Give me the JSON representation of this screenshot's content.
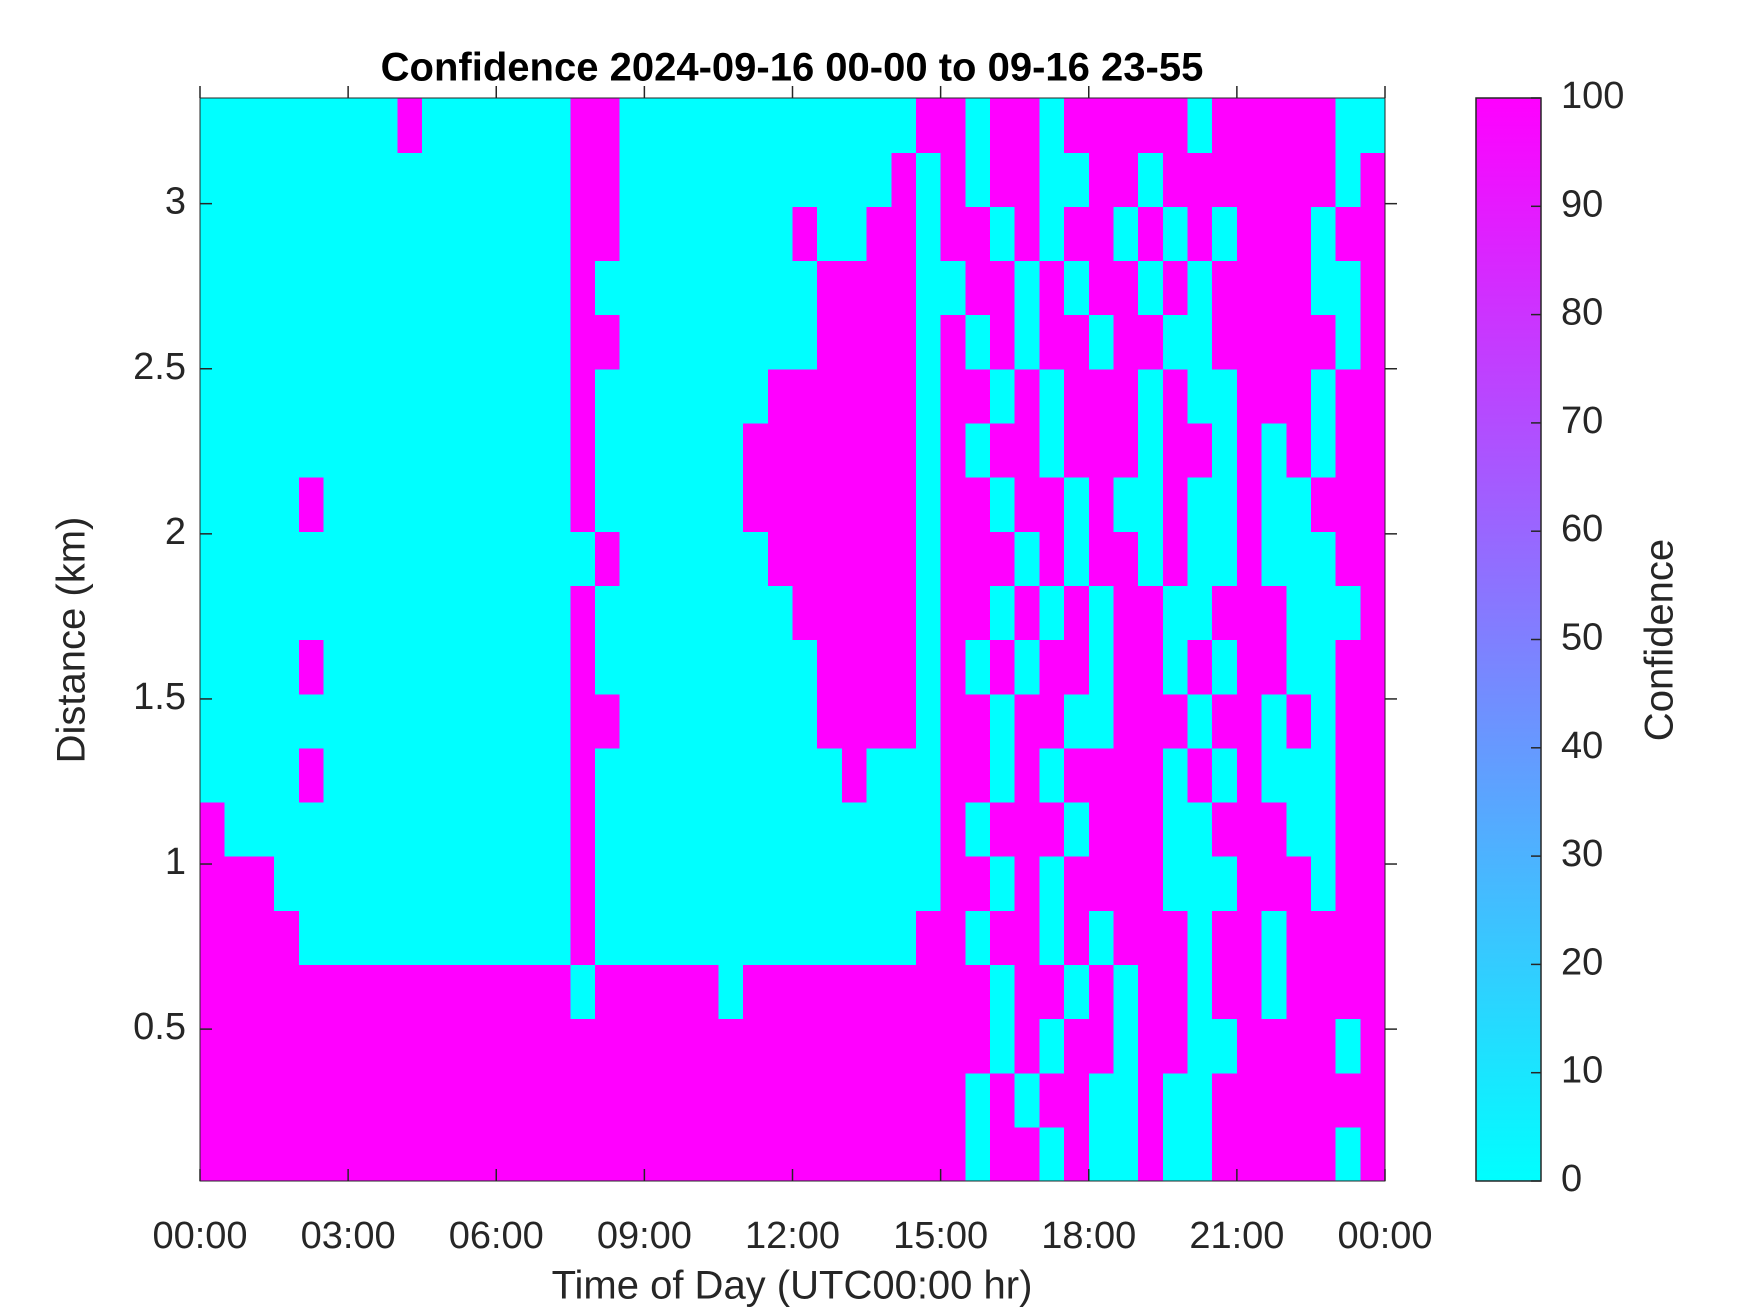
{
  "chart_data": {
    "type": "heatmap",
    "title": "Confidence 2024-09-16 00-00 to 09-16 23-55",
    "xlabel": "Time of Day (UTC00:00 hr)",
    "ylabel": "Distance (km)",
    "colorbar_label": "Confidence",
    "colormap": [
      "#00ffff",
      "#ff00ff"
    ],
    "clim": [
      0,
      100
    ],
    "cticks": [
      0,
      10,
      20,
      30,
      40,
      50,
      60,
      70,
      80,
      90,
      100
    ],
    "xlim": [
      0,
      24
    ],
    "xticks": [
      {
        "value": 0,
        "label": "00:00"
      },
      {
        "value": 3,
        "label": "03:00"
      },
      {
        "value": 6,
        "label": "06:00"
      },
      {
        "value": 9,
        "label": "09:00"
      },
      {
        "value": 12,
        "label": "12:00"
      },
      {
        "value": 15,
        "label": "15:00"
      },
      {
        "value": 18,
        "label": "18:00"
      },
      {
        "value": 21,
        "label": "21:00"
      },
      {
        "value": 24,
        "label": "00:00"
      }
    ],
    "ylim": [
      0.04,
      3.32
    ],
    "yticks": [
      0.5,
      1,
      1.5,
      2,
      2.5,
      3
    ],
    "x": [
      0,
      0.5,
      1,
      1.5,
      2,
      2.5,
      3,
      3.5,
      4,
      4.5,
      5,
      5.5,
      6,
      6.5,
      7,
      7.5,
      8,
      8.5,
      9,
      9.5,
      10,
      10.5,
      11,
      11.5,
      12,
      12.5,
      13,
      13.5,
      14,
      14.5,
      15,
      15.5,
      16,
      16.5,
      17,
      17.5,
      18,
      18.5,
      19,
      19.5,
      20,
      20.5,
      21,
      21.5,
      22,
      22.5,
      23,
      23.5
    ],
    "y": [
      0.04,
      0.204,
      0.368,
      0.532,
      0.696,
      0.86,
      1.024,
      1.188,
      1.352,
      1.516,
      1.68,
      1.844,
      2.008,
      2.172,
      2.336,
      2.5,
      2.664,
      2.828,
      2.992,
      3.156
    ],
    "z": [
      [
        100,
        100,
        100,
        100,
        100,
        100,
        100,
        100,
        100,
        100,
        100,
        100,
        100,
        100,
        100,
        100,
        100,
        100,
        100,
        100,
        100,
        100,
        100,
        100,
        100,
        100,
        100,
        100,
        100,
        100,
        100,
        0,
        100,
        100,
        0,
        100,
        0,
        0,
        100,
        0,
        0,
        100,
        100,
        100,
        100,
        100,
        0,
        100
      ],
      [
        100,
        100,
        100,
        100,
        100,
        100,
        100,
        100,
        100,
        100,
        100,
        100,
        100,
        100,
        100,
        100,
        100,
        100,
        100,
        100,
        100,
        100,
        100,
        100,
        100,
        100,
        100,
        100,
        100,
        100,
        100,
        0,
        100,
        0,
        100,
        100,
        0,
        0,
        100,
        0,
        0,
        100,
        100,
        100,
        100,
        100,
        100,
        100
      ],
      [
        100,
        100,
        100,
        100,
        100,
        100,
        100,
        100,
        100,
        100,
        100,
        100,
        100,
        100,
        100,
        100,
        100,
        100,
        100,
        100,
        100,
        100,
        100,
        100,
        100,
        100,
        100,
        100,
        100,
        100,
        100,
        100,
        0,
        100,
        0,
        100,
        100,
        0,
        100,
        100,
        0,
        0,
        100,
        100,
        100,
        100,
        0,
        100
      ],
      [
        100,
        100,
        100,
        100,
        100,
        100,
        100,
        100,
        100,
        100,
        100,
        100,
        100,
        100,
        100,
        0,
        100,
        100,
        100,
        100,
        100,
        0,
        100,
        100,
        100,
        100,
        100,
        100,
        100,
        100,
        100,
        100,
        0,
        100,
        100,
        0,
        100,
        0,
        100,
        100,
        0,
        100,
        100,
        0,
        100,
        100,
        100,
        100
      ],
      [
        100,
        100,
        100,
        100,
        0,
        0,
        0,
        0,
        0,
        0,
        0,
        0,
        0,
        0,
        0,
        100,
        0,
        0,
        0,
        0,
        0,
        0,
        0,
        0,
        0,
        0,
        0,
        0,
        0,
        100,
        100,
        0,
        100,
        100,
        0,
        100,
        0,
        100,
        100,
        100,
        0,
        100,
        100,
        0,
        100,
        100,
        100,
        100
      ],
      [
        100,
        100,
        100,
        0,
        0,
        0,
        0,
        0,
        0,
        0,
        0,
        0,
        0,
        0,
        0,
        100,
        0,
        0,
        0,
        0,
        0,
        0,
        0,
        0,
        0,
        0,
        0,
        0,
        0,
        0,
        100,
        100,
        0,
        100,
        0,
        100,
        100,
        100,
        100,
        0,
        0,
        0,
        100,
        100,
        100,
        0,
        100,
        100
      ],
      [
        100,
        0,
        0,
        0,
        0,
        0,
        0,
        0,
        0,
        0,
        0,
        0,
        0,
        0,
        0,
        100,
        0,
        0,
        0,
        0,
        0,
        0,
        0,
        0,
        0,
        0,
        0,
        0,
        0,
        0,
        100,
        0,
        100,
        100,
        100,
        0,
        100,
        100,
        100,
        0,
        0,
        100,
        100,
        100,
        0,
        0,
        100,
        100
      ],
      [
        0,
        0,
        0,
        0,
        100,
        0,
        0,
        0,
        0,
        0,
        0,
        0,
        0,
        0,
        0,
        100,
        0,
        0,
        0,
        0,
        0,
        0,
        0,
        0,
        0,
        0,
        100,
        0,
        0,
        0,
        100,
        100,
        0,
        100,
        0,
        100,
        100,
        100,
        100,
        0,
        100,
        0,
        100,
        0,
        0,
        0,
        100,
        100
      ],
      [
        0,
        0,
        0,
        0,
        0,
        0,
        0,
        0,
        0,
        0,
        0,
        0,
        0,
        0,
        0,
        100,
        100,
        0,
        0,
        0,
        0,
        0,
        0,
        0,
        0,
        100,
        100,
        100,
        100,
        0,
        100,
        100,
        0,
        100,
        100,
        0,
        0,
        100,
        100,
        100,
        0,
        100,
        100,
        0,
        100,
        0,
        100,
        100
      ],
      [
        0,
        0,
        0,
        0,
        100,
        0,
        0,
        0,
        0,
        0,
        0,
        0,
        0,
        0,
        0,
        100,
        0,
        0,
        0,
        0,
        0,
        0,
        0,
        0,
        0,
        100,
        100,
        100,
        100,
        0,
        100,
        0,
        100,
        0,
        100,
        100,
        0,
        100,
        100,
        0,
        100,
        0,
        100,
        100,
        0,
        0,
        100,
        100
      ],
      [
        0,
        0,
        0,
        0,
        0,
        0,
        0,
        0,
        0,
        0,
        0,
        0,
        0,
        0,
        0,
        100,
        0,
        0,
        0,
        0,
        0,
        0,
        0,
        0,
        100,
        100,
        100,
        100,
        100,
        0,
        100,
        100,
        0,
        100,
        0,
        100,
        0,
        100,
        100,
        0,
        0,
        100,
        100,
        100,
        0,
        0,
        0,
        100
      ],
      [
        0,
        0,
        0,
        0,
        0,
        0,
        0,
        0,
        0,
        0,
        0,
        0,
        0,
        0,
        0,
        0,
        100,
        0,
        0,
        0,
        0,
        0,
        0,
        100,
        100,
        100,
        100,
        100,
        100,
        0,
        100,
        100,
        100,
        0,
        100,
        0,
        100,
        100,
        0,
        100,
        0,
        0,
        100,
        0,
        0,
        0,
        100,
        100
      ],
      [
        0,
        0,
        0,
        0,
        100,
        0,
        0,
        0,
        0,
        0,
        0,
        0,
        0,
        0,
        0,
        100,
        0,
        0,
        0,
        0,
        0,
        0,
        100,
        100,
        100,
        100,
        100,
        100,
        100,
        0,
        100,
        100,
        0,
        100,
        100,
        0,
        100,
        0,
        0,
        100,
        0,
        0,
        100,
        0,
        0,
        100,
        100,
        100
      ],
      [
        0,
        0,
        0,
        0,
        0,
        0,
        0,
        0,
        0,
        0,
        0,
        0,
        0,
        0,
        0,
        100,
        0,
        0,
        0,
        0,
        0,
        0,
        100,
        100,
        100,
        100,
        100,
        100,
        100,
        0,
        100,
        0,
        100,
        100,
        0,
        100,
        100,
        100,
        0,
        100,
        100,
        0,
        100,
        0,
        100,
        0,
        100,
        100
      ],
      [
        0,
        0,
        0,
        0,
        0,
        0,
        0,
        0,
        0,
        0,
        0,
        0,
        0,
        0,
        0,
        100,
        0,
        0,
        0,
        0,
        0,
        0,
        0,
        100,
        100,
        100,
        100,
        100,
        100,
        0,
        100,
        100,
        0,
        100,
        0,
        100,
        100,
        100,
        0,
        100,
        0,
        0,
        100,
        100,
        100,
        0,
        100,
        100
      ],
      [
        0,
        0,
        0,
        0,
        0,
        0,
        0,
        0,
        0,
        0,
        0,
        0,
        0,
        0,
        0,
        100,
        100,
        0,
        0,
        0,
        0,
        0,
        0,
        0,
        0,
        100,
        100,
        100,
        100,
        0,
        100,
        0,
        100,
        0,
        100,
        100,
        0,
        100,
        100,
        0,
        0,
        100,
        100,
        100,
        100,
        100,
        0,
        100
      ],
      [
        0,
        0,
        0,
        0,
        0,
        0,
        0,
        0,
        0,
        0,
        0,
        0,
        0,
        0,
        0,
        100,
        0,
        0,
        0,
        0,
        0,
        0,
        0,
        0,
        0,
        100,
        100,
        100,
        100,
        0,
        0,
        100,
        100,
        0,
        100,
        0,
        100,
        100,
        0,
        100,
        0,
        100,
        100,
        100,
        100,
        0,
        0,
        100
      ],
      [
        0,
        0,
        0,
        0,
        0,
        0,
        0,
        0,
        0,
        0,
        0,
        0,
        0,
        0,
        0,
        100,
        100,
        0,
        0,
        0,
        0,
        0,
        0,
        0,
        100,
        0,
        0,
        100,
        100,
        0,
        100,
        100,
        0,
        100,
        0,
        100,
        100,
        0,
        100,
        0,
        100,
        0,
        100,
        100,
        100,
        0,
        100,
        100
      ],
      [
        0,
        0,
        0,
        0,
        0,
        0,
        0,
        0,
        0,
        0,
        0,
        0,
        0,
        0,
        0,
        100,
        100,
        0,
        0,
        0,
        0,
        0,
        0,
        0,
        0,
        0,
        0,
        0,
        100,
        0,
        100,
        0,
        100,
        100,
        0,
        0,
        100,
        100,
        0,
        100,
        100,
        100,
        100,
        100,
        100,
        100,
        0,
        100
      ],
      [
        0,
        0,
        0,
        0,
        0,
        0,
        0,
        0,
        100,
        0,
        0,
        0,
        0,
        0,
        0,
        100,
        100,
        0,
        0,
        0,
        0,
        0,
        0,
        0,
        0,
        0,
        0,
        0,
        0,
        100,
        100,
        0,
        100,
        100,
        0,
        100,
        100,
        100,
        100,
        100,
        0,
        100,
        100,
        100,
        100,
        100,
        0,
        0
      ]
    ]
  }
}
